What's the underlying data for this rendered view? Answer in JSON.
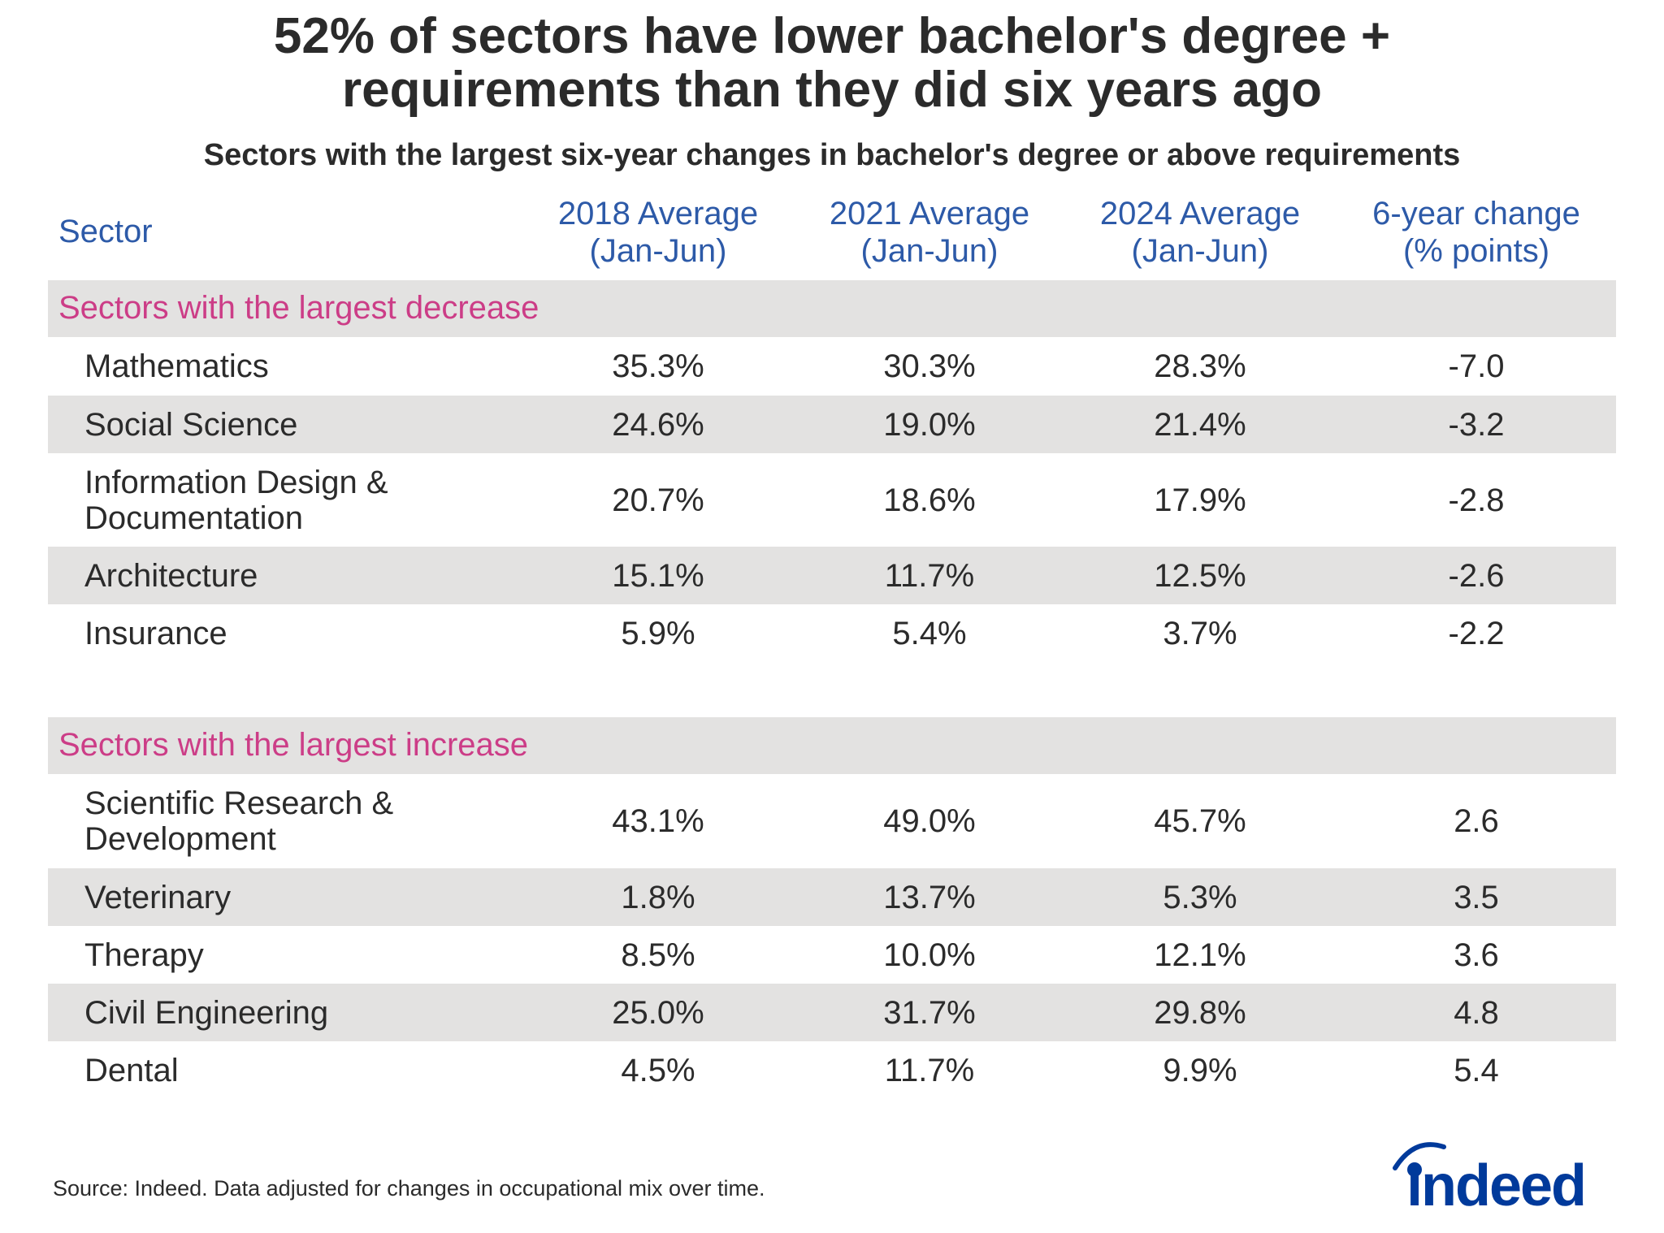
{
  "chart_data": {
    "type": "table",
    "title": "52% of sectors have lower bachelor's degree + requirements than they did six years ago",
    "title_lines": [
      "52% of sectors have lower bachelor's degree +",
      "requirements than they did six years ago"
    ],
    "subtitle": "Sectors with the largest six-year changes in bachelor's degree or above requirements",
    "columns": [
      {
        "label": "Sector"
      },
      {
        "line1": "2018 Average",
        "line2": "(Jan-Jun)"
      },
      {
        "line1": "2021 Average",
        "line2": "(Jan-Jun)"
      },
      {
        "line1": "2024 Average",
        "line2": "(Jan-Jun)"
      },
      {
        "line1": "6-year change",
        "line2": "(% points)"
      }
    ],
    "groups": [
      {
        "label": "Sectors with the largest decrease",
        "rows": [
          {
            "sector": "Mathematics",
            "y2018": "35.3%",
            "y2021": "30.3%",
            "y2024": "28.3%",
            "change": "-7.0"
          },
          {
            "sector": "Social Science",
            "y2018": "24.6%",
            "y2021": "19.0%",
            "y2024": "21.4%",
            "change": "-3.2"
          },
          {
            "sector": "Information Design & Documentation",
            "sector_lines": [
              "Information Design &",
              "Documentation"
            ],
            "y2018": "20.7%",
            "y2021": "18.6%",
            "y2024": "17.9%",
            "change": "-2.8"
          },
          {
            "sector": "Architecture",
            "y2018": "15.1%",
            "y2021": "11.7%",
            "y2024": "12.5%",
            "change": "-2.6"
          },
          {
            "sector": "Insurance",
            "y2018": "5.9%",
            "y2021": "5.4%",
            "y2024": "3.7%",
            "change": "-2.2"
          }
        ]
      },
      {
        "label": "Sectors with the largest increase",
        "rows": [
          {
            "sector": "Scientific Research & Development",
            "sector_lines": [
              "Scientific Research &",
              "Development"
            ],
            "y2018": "43.1%",
            "y2021": "49.0%",
            "y2024": "45.7%",
            "change": "2.6"
          },
          {
            "sector": "Veterinary",
            "y2018": "1.8%",
            "y2021": "13.7%",
            "y2024": "5.3%",
            "change": "3.5"
          },
          {
            "sector": "Therapy",
            "y2018": "8.5%",
            "y2021": "10.0%",
            "y2024": "12.1%",
            "change": "3.6"
          },
          {
            "sector": "Civil Engineering",
            "y2018": "25.0%",
            "y2021": "31.7%",
            "y2024": "29.8%",
            "change": "4.8"
          },
          {
            "sector": "Dental",
            "y2018": "4.5%",
            "y2021": "11.7%",
            "y2024": "9.9%",
            "change": "5.4"
          }
        ]
      }
    ]
  },
  "source": "Source: Indeed. Data adjusted for changes in occupational mix over time.",
  "logo": {
    "text": "indeed",
    "color": "#003a9b"
  },
  "colors": {
    "header": "#2d5aa8",
    "group_label": "#cc3d87",
    "band": "#e3e2e1",
    "text": "#2b2b2b"
  }
}
